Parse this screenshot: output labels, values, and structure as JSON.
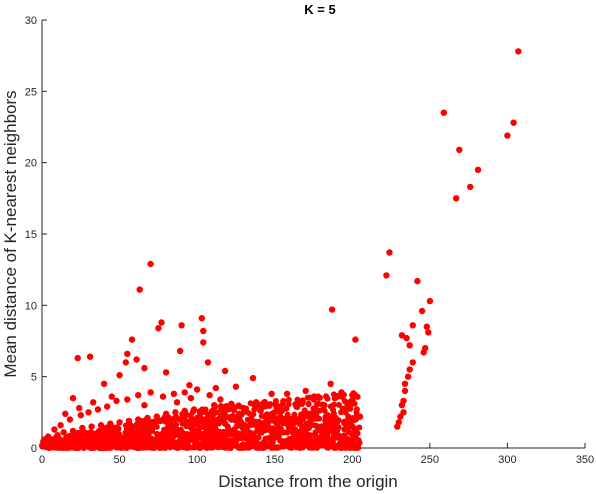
{
  "chart_data": {
    "type": "scatter",
    "title": "K = 5",
    "xlabel": "Distance from the origin",
    "ylabel": "Mean distance of K-nearest neighbors",
    "xlim": [
      0,
      350
    ],
    "ylim": [
      0,
      30
    ],
    "xticks": [
      0,
      50,
      100,
      150,
      200,
      250,
      300,
      350
    ],
    "yticks": [
      0,
      5,
      10,
      15,
      20,
      25,
      30
    ],
    "grid": false,
    "legend": "none",
    "marker_color": "#ff0000",
    "points": [
      {
        "x": 307,
        "y": 27.8
      },
      {
        "x": 259,
        "y": 23.5
      },
      {
        "x": 304,
        "y": 22.8
      },
      {
        "x": 300,
        "y": 21.9
      },
      {
        "x": 269,
        "y": 20.9
      },
      {
        "x": 281,
        "y": 19.5
      },
      {
        "x": 276,
        "y": 18.3
      },
      {
        "x": 267,
        "y": 17.5
      },
      {
        "x": 224,
        "y": 13.7
      },
      {
        "x": 222,
        "y": 12.1
      },
      {
        "x": 242,
        "y": 11.7
      },
      {
        "x": 250,
        "y": 10.3
      },
      {
        "x": 245,
        "y": 9.6
      },
      {
        "x": 239,
        "y": 8.6
      },
      {
        "x": 248,
        "y": 8.5
      },
      {
        "x": 249,
        "y": 8.1
      },
      {
        "x": 232,
        "y": 7.9
      },
      {
        "x": 235,
        "y": 7.7
      },
      {
        "x": 237,
        "y": 7.2
      },
      {
        "x": 247,
        "y": 7.0
      },
      {
        "x": 246,
        "y": 6.7
      },
      {
        "x": 239,
        "y": 6.0
      },
      {
        "x": 237,
        "y": 5.5
      },
      {
        "x": 236,
        "y": 5.0
      },
      {
        "x": 234,
        "y": 4.5
      },
      {
        "x": 234,
        "y": 4.0
      },
      {
        "x": 233,
        "y": 3.3
      },
      {
        "x": 232,
        "y": 3.0
      },
      {
        "x": 233,
        "y": 2.5
      },
      {
        "x": 187,
        "y": 9.7
      },
      {
        "x": 202,
        "y": 7.6
      },
      {
        "x": 70,
        "y": 12.9
      },
      {
        "x": 63,
        "y": 11.1
      },
      {
        "x": 103,
        "y": 9.1
      },
      {
        "x": 77,
        "y": 8.8
      },
      {
        "x": 90,
        "y": 8.6
      },
      {
        "x": 75,
        "y": 8.4
      },
      {
        "x": 104,
        "y": 8.2
      },
      {
        "x": 58,
        "y": 7.6
      },
      {
        "x": 104,
        "y": 7.4
      },
      {
        "x": 89,
        "y": 6.8
      },
      {
        "x": 55,
        "y": 6.6
      },
      {
        "x": 23,
        "y": 6.3
      },
      {
        "x": 31,
        "y": 6.4
      },
      {
        "x": 61,
        "y": 6.2
      },
      {
        "x": 54,
        "y": 6.0
      },
      {
        "x": 107,
        "y": 6.0
      },
      {
        "x": 66,
        "y": 5.6
      },
      {
        "x": 118,
        "y": 5.4
      },
      {
        "x": 80,
        "y": 5.3
      },
      {
        "x": 50,
        "y": 5.1
      },
      {
        "x": 40,
        "y": 4.5
      },
      {
        "x": 95,
        "y": 4.4
      },
      {
        "x": 136,
        "y": 4.9
      },
      {
        "x": 186,
        "y": 4.5
      },
      {
        "x": 170,
        "y": 4.0
      },
      {
        "x": 148,
        "y": 3.8
      },
      {
        "x": 158,
        "y": 3.8
      },
      {
        "x": 193,
        "y": 3.9
      },
      {
        "x": 200,
        "y": 3.7
      },
      {
        "x": 178,
        "y": 3.6
      },
      {
        "x": 125,
        "y": 4.3
      },
      {
        "x": 112,
        "y": 4.2
      },
      {
        "x": 20,
        "y": 3.5
      },
      {
        "x": 33,
        "y": 3.2
      },
      {
        "x": 205,
        "y": 2.2
      },
      {
        "x": 196,
        "y": 2.8
      },
      {
        "x": 188,
        "y": 1.9
      },
      {
        "x": 176,
        "y": 2.6
      },
      {
        "x": 164,
        "y": 2.9
      },
      {
        "x": 160,
        "y": 1.5
      },
      {
        "x": 152,
        "y": 2.6
      },
      {
        "x": 144,
        "y": 2.2
      },
      {
        "x": 138,
        "y": 3.2
      },
      {
        "x": 130,
        "y": 2.8
      },
      {
        "x": 122,
        "y": 3.1
      },
      {
        "x": 115,
        "y": 3.4
      },
      {
        "x": 108,
        "y": 3.7
      },
      {
        "x": 100,
        "y": 4.1
      },
      {
        "x": 92,
        "y": 3.9
      },
      {
        "x": 85,
        "y": 3.8
      },
      {
        "x": 78,
        "y": 3.6
      },
      {
        "x": 70,
        "y": 3.9
      },
      {
        "x": 62,
        "y": 3.7
      },
      {
        "x": 55,
        "y": 3.4
      },
      {
        "x": 48,
        "y": 3.3
      },
      {
        "x": 42,
        "y": 2.9
      },
      {
        "x": 36,
        "y": 2.7
      },
      {
        "x": 30,
        "y": 2.5
      },
      {
        "x": 25,
        "y": 2.3
      },
      {
        "x": 18,
        "y": 2.0
      },
      {
        "x": 12,
        "y": 1.6
      },
      {
        "x": 8,
        "y": 1.3
      },
      {
        "x": 4,
        "y": 0.8
      },
      {
        "x": 2,
        "y": 0.4
      },
      {
        "x": 1,
        "y": 0.2
      },
      {
        "x": 6,
        "y": 0.6
      },
      {
        "x": 10,
        "y": 0.9
      },
      {
        "x": 14,
        "y": 1.1
      },
      {
        "x": 20,
        "y": 1.2
      },
      {
        "x": 26,
        "y": 1.4
      },
      {
        "x": 32,
        "y": 1.5
      },
      {
        "x": 38,
        "y": 1.6
      },
      {
        "x": 44,
        "y": 1.7
      },
      {
        "x": 50,
        "y": 1.8
      },
      {
        "x": 56,
        "y": 1.9
      },
      {
        "x": 62,
        "y": 2.0
      },
      {
        "x": 68,
        "y": 2.1
      },
      {
        "x": 74,
        "y": 2.2
      },
      {
        "x": 80,
        "y": 2.4
      },
      {
        "x": 86,
        "y": 2.5
      },
      {
        "x": 92,
        "y": 2.6
      },
      {
        "x": 98,
        "y": 2.7
      },
      {
        "x": 104,
        "y": 2.6
      },
      {
        "x": 110,
        "y": 2.4
      },
      {
        "x": 116,
        "y": 2.2
      },
      {
        "x": 122,
        "y": 2.0
      },
      {
        "x": 128,
        "y": 1.8
      },
      {
        "x": 134,
        "y": 1.6
      },
      {
        "x": 140,
        "y": 1.5
      },
      {
        "x": 146,
        "y": 1.3
      },
      {
        "x": 152,
        "y": 1.2
      },
      {
        "x": 158,
        "y": 1.1
      },
      {
        "x": 164,
        "y": 1.0
      },
      {
        "x": 170,
        "y": 1.0
      },
      {
        "x": 176,
        "y": 0.9
      },
      {
        "x": 182,
        "y": 0.8
      },
      {
        "x": 188,
        "y": 0.8
      },
      {
        "x": 194,
        "y": 0.7
      },
      {
        "x": 200,
        "y": 0.6
      },
      {
        "x": 204,
        "y": 0.5
      },
      {
        "x": 16,
        "y": 0.3
      },
      {
        "x": 28,
        "y": 0.5
      },
      {
        "x": 40,
        "y": 0.6
      },
      {
        "x": 52,
        "y": 0.7
      },
      {
        "x": 64,
        "y": 0.8
      },
      {
        "x": 76,
        "y": 0.9
      },
      {
        "x": 88,
        "y": 1.0
      },
      {
        "x": 100,
        "y": 1.1
      },
      {
        "x": 112,
        "y": 1.2
      },
      {
        "x": 124,
        "y": 1.0
      },
      {
        "x": 136,
        "y": 0.9
      },
      {
        "x": 148,
        "y": 0.7
      },
      {
        "x": 160,
        "y": 0.6
      },
      {
        "x": 172,
        "y": 0.5
      },
      {
        "x": 184,
        "y": 0.4
      },
      {
        "x": 196,
        "y": 0.3
      },
      {
        "x": 22,
        "y": 0.8
      },
      {
        "x": 34,
        "y": 1.0
      },
      {
        "x": 46,
        "y": 1.2
      },
      {
        "x": 58,
        "y": 1.3
      },
      {
        "x": 70,
        "y": 1.5
      },
      {
        "x": 82,
        "y": 1.6
      },
      {
        "x": 94,
        "y": 1.8
      },
      {
        "x": 106,
        "y": 1.9
      },
      {
        "x": 118,
        "y": 1.7
      },
      {
        "x": 130,
        "y": 1.4
      },
      {
        "x": 142,
        "y": 1.2
      },
      {
        "x": 154,
        "y": 1.9
      },
      {
        "x": 166,
        "y": 1.7
      },
      {
        "x": 178,
        "y": 1.4
      },
      {
        "x": 190,
        "y": 1.2
      },
      {
        "x": 202,
        "y": 1.0
      },
      {
        "x": 15,
        "y": 2.4
      },
      {
        "x": 24,
        "y": 2.8
      },
      {
        "x": 45,
        "y": 3.6
      },
      {
        "x": 66,
        "y": 3.0
      },
      {
        "x": 87,
        "y": 3.2
      },
      {
        "x": 96,
        "y": 3.5
      },
      {
        "x": 111,
        "y": 3.0
      },
      {
        "x": 127,
        "y": 2.4
      },
      {
        "x": 143,
        "y": 2.9
      },
      {
        "x": 168,
        "y": 2.2
      },
      {
        "x": 182,
        "y": 3.0
      },
      {
        "x": 198,
        "y": 2.0
      },
      {
        "x": 3,
        "y": 0.1
      },
      {
        "x": 9,
        "y": 0.2
      },
      {
        "x": 35,
        "y": 0.2
      },
      {
        "x": 60,
        "y": 0.3
      },
      {
        "x": 85,
        "y": 0.4
      },
      {
        "x": 110,
        "y": 0.5
      },
      {
        "x": 135,
        "y": 0.4
      },
      {
        "x": 180,
        "y": 0.2
      },
      {
        "x": 230,
        "y": 1.8
      },
      {
        "x": 231,
        "y": 2.2
      },
      {
        "x": 229,
        "y": 1.5
      }
    ]
  }
}
